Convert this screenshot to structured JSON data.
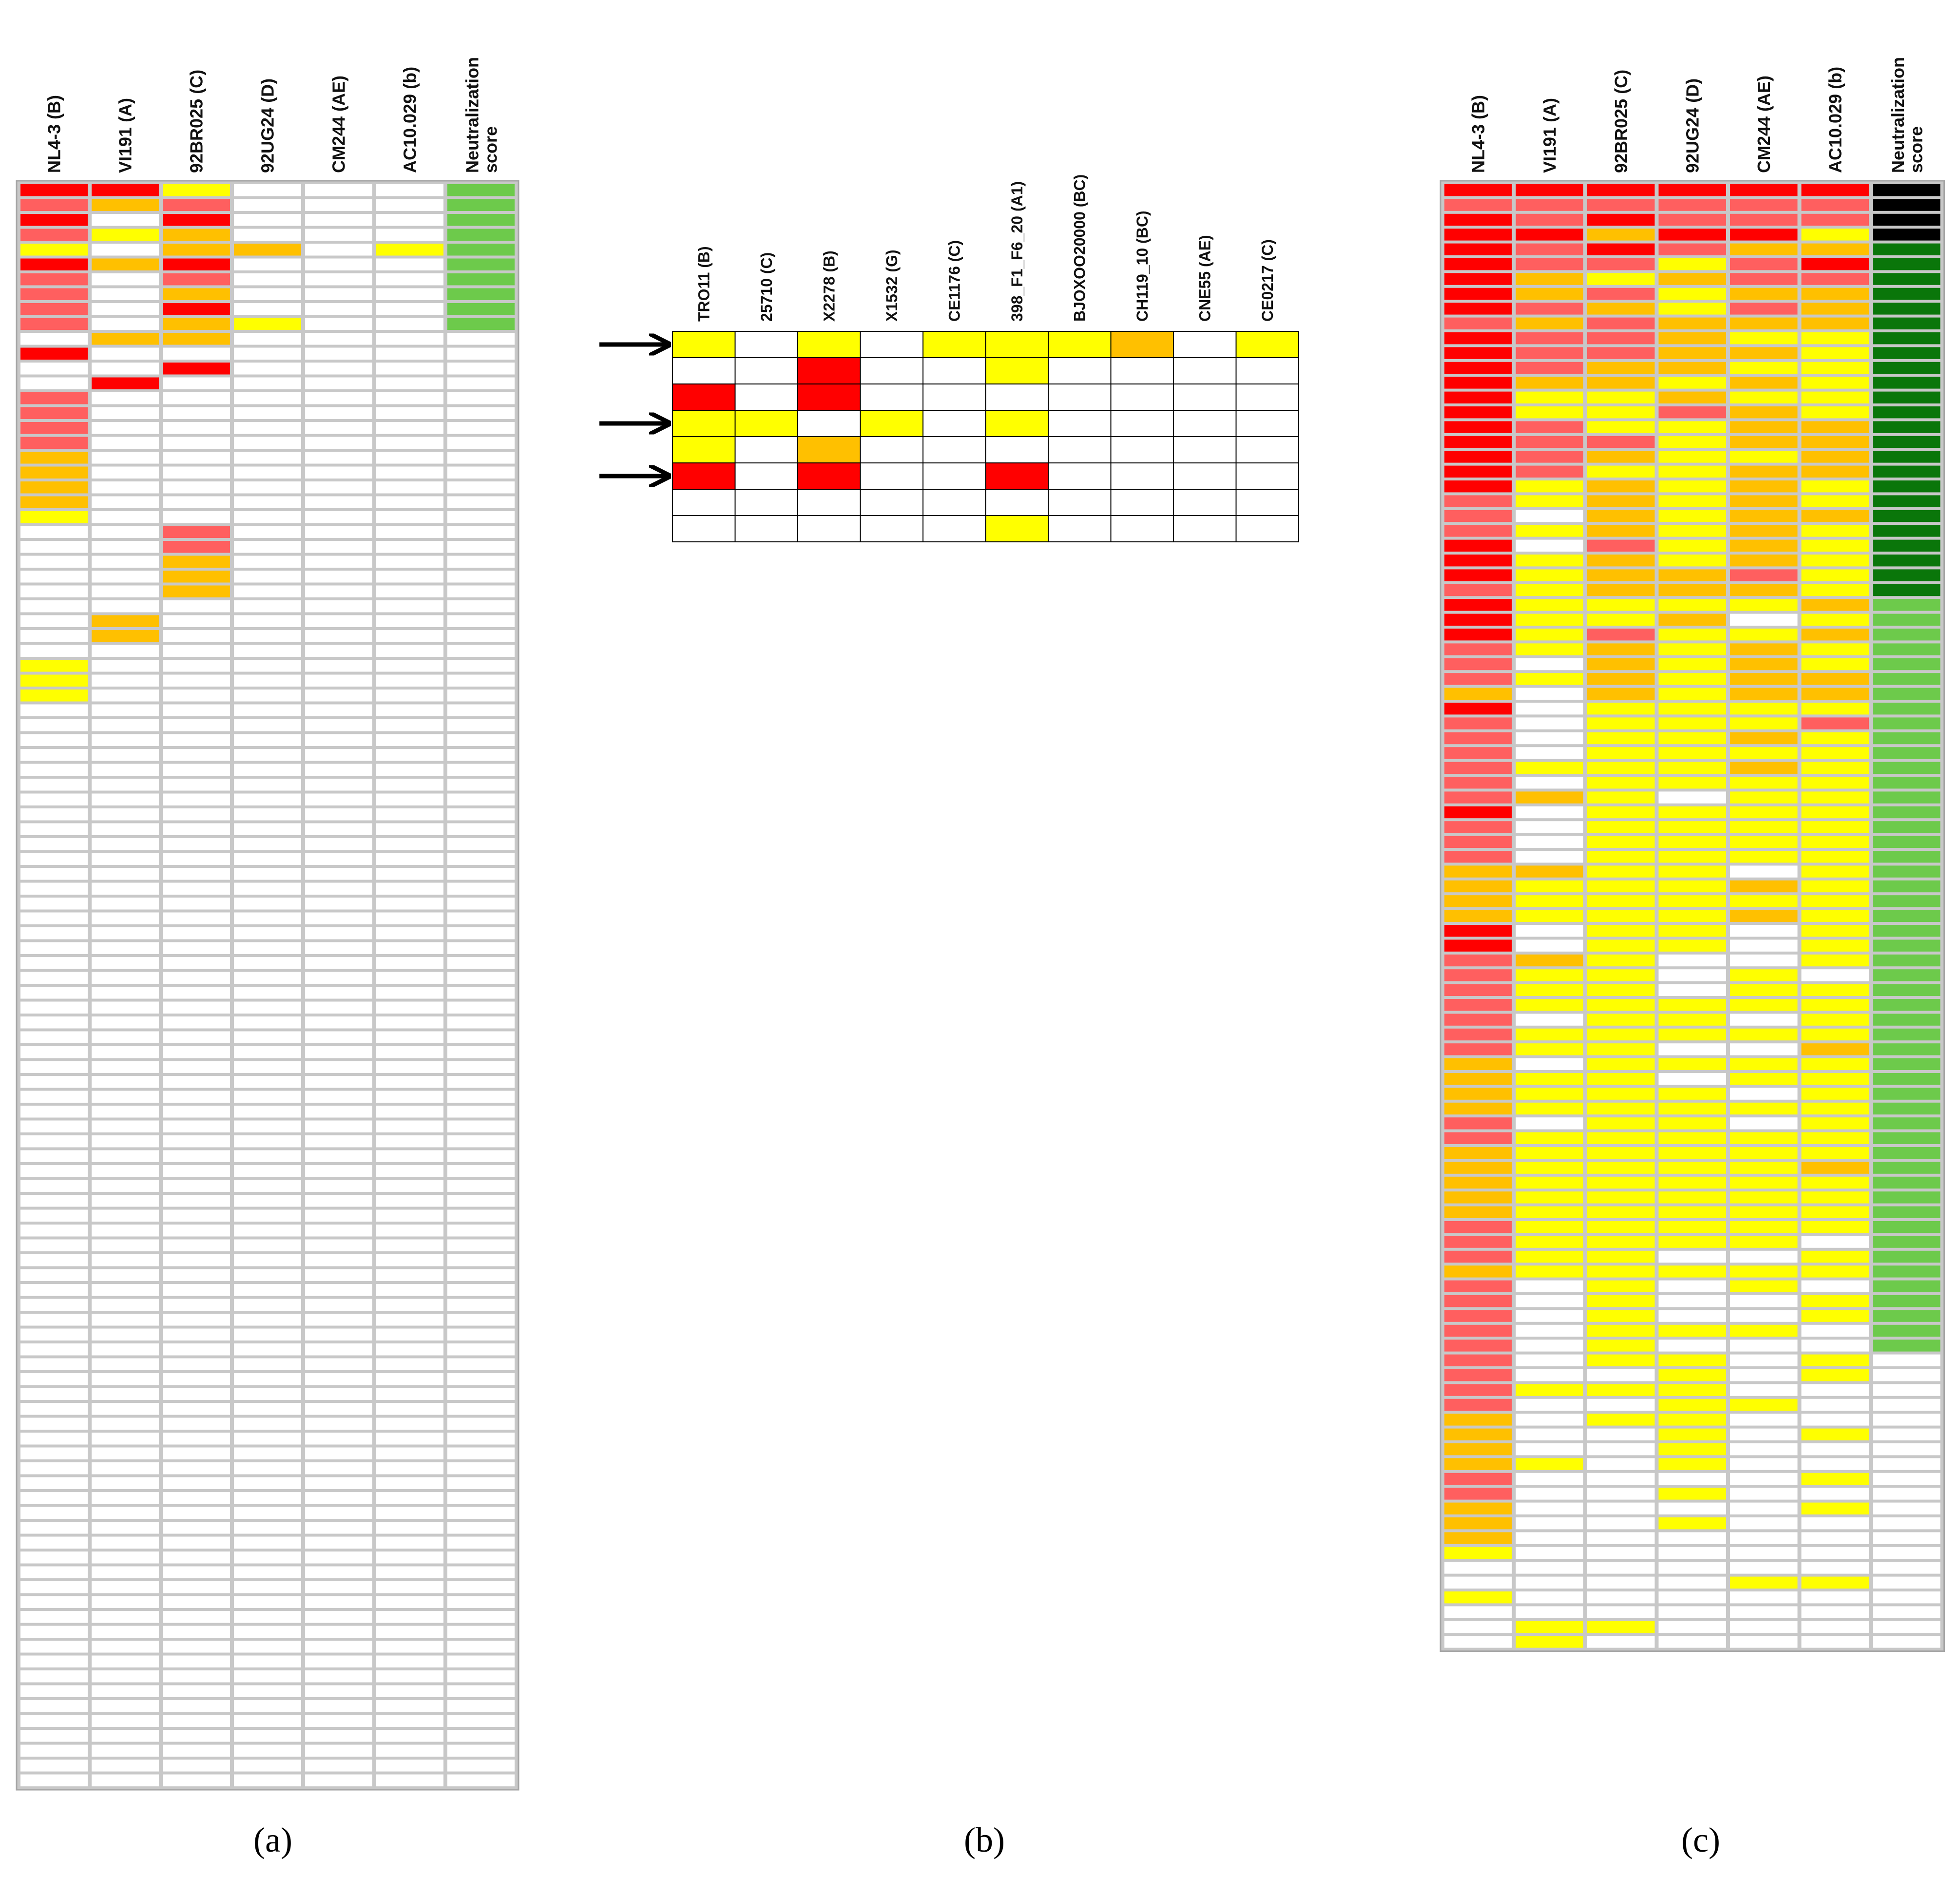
{
  "colors": {
    "red": "#ff0000",
    "salmon": "#ff5f5f",
    "orange": "#ffc000",
    "yellow": "#ffff00",
    "white": "#ffffff",
    "green_light": "#6dca4b",
    "green_dark": "#0a760a",
    "black": "#000000",
    "grid": "#a6a6a6",
    "grid_b": "#000000"
  },
  "color_codes": {
    "R": "red",
    "S": "salmon",
    "O": "orange",
    "Y": "yellow",
    "W": "white",
    "G": "green_light",
    "D": "green_dark",
    "K": "black"
  },
  "chart_data": [
    {
      "type": "heatmap",
      "panel": "a",
      "caption": "(a)",
      "columns": [
        "NL4-3 (B)",
        "VI191 (A)",
        "92BR025 (C)",
        "92UG24 (D)",
        "CM244 (AE)",
        "AC10.029 (b)",
        "Neutralization score"
      ],
      "rows": [
        "RRYWWWG",
        "SOSWWWG",
        "RWRWWWG",
        "SYOWWWG",
        "YWOOWYG",
        "RORWWWG",
        "SWSWWWG",
        "SWOWWWG",
        "SWRWWWG",
        "SWOYWWG",
        "WOOWWWW",
        "RWWWWWW",
        "WWRWWWW",
        "WRWWWWW",
        "SWWWWWW",
        "SWWWWWW",
        "SWWWWWW",
        "SWWWWWW",
        "OWWWWWW",
        "OWWWWWW",
        "OWWWWWW",
        "OWWWWWW",
        "YWWWWWW",
        "WWSWWWW",
        "WWSWWWW",
        "WWOWWWW",
        "WWOWWWW",
        "WWOWWWW",
        "WWWWWWW",
        "WOWWWWW",
        "WOWWWWW",
        "WWWWWWW",
        "YWWWWWW",
        "YWWWWWW",
        "YWWWWWW",
        "WWWWWWW",
        "WWWWWWW",
        "WWWWWWW",
        "WWWWWWW",
        "WWWWWWW",
        "WWWWWWW",
        "WWWWWWW",
        "WWWWWWW",
        "WWWWWWW",
        "WWWWWWW",
        "WWWWWWW",
        "WWWWWWW",
        "WWWWWWW",
        "WWWWWWW",
        "WWWWWWW",
        "WWWWWWW",
        "WWWWWWW",
        "WWWWWWW",
        "WWWWWWW",
        "WWWWWWW",
        "WWWWWWW",
        "WWWWWWW",
        "WWWWWWW",
        "WWWWWWW",
        "WWWWWWW",
        "WWWWWWW",
        "WWWWWWW",
        "WWWWWWW",
        "WWWWWWW",
        "WWWWWWW",
        "WWWWWWW",
        "WWWWWWW",
        "WWWWWWW",
        "WWWWWWW",
        "WWWWWWW",
        "WWWWWWW",
        "WWWWWWW",
        "WWWWWWW",
        "WWWWWWW",
        "WWWWWWW",
        "WWWWWWW",
        "WWWWWWW",
        "WWWWWWW",
        "WWWWWWW",
        "WWWWWWW",
        "WWWWWWW",
        "WWWWWWW",
        "WWWWWWW",
        "WWWWWWW",
        "WWWWWWW",
        "WWWWWWW",
        "WWWWWWW",
        "WWWWWWW",
        "WWWWWWW",
        "WWWWWWW",
        "WWWWWWW",
        "WWWWWWW",
        "WWWWWWW",
        "WWWWWWW",
        "WWWWWWW",
        "WWWWWWW",
        "WWWWWWW",
        "WWWWWWW",
        "WWWWWWW",
        "WWWWWWW",
        "WWWWWWW",
        "WWWWWWW",
        "WWWWWWW",
        "WWWWWWW",
        "WWWWWWW",
        "WWWWWWW",
        "WWWWWWW",
        "WWWWWWW"
      ]
    },
    {
      "type": "heatmap",
      "panel": "b",
      "caption": "(b)",
      "columns": [
        "TRO11 (B)",
        "25710 (C)",
        "X2278 (B)",
        "X1532 (G)",
        "CE1176 (C)",
        "398_F1_F6_20 (A1)",
        "BJOXOO20000 (BC)",
        "CH119_10 (BC)",
        "CNE55 (AE)",
        "CE0217 (C)"
      ],
      "rows": [
        "YWYWYYYOWY",
        "WWRWWYWWWW",
        "RWRWWWWWWW",
        "YYWYWYWWWW",
        "YWOWWWWWWW",
        "RWRWWRWWWW",
        "WWWWWWWWWW",
        "WWWWWYWWWW"
      ],
      "arrow_rows": [
        1,
        4,
        6
      ]
    },
    {
      "type": "heatmap",
      "panel": "c",
      "caption": "(c)",
      "columns": [
        "NL4-3 (B)",
        "VI191 (A)",
        "92BR025 (C)",
        "92UG24 (D)",
        "CM244 (AE)",
        "AC10.029 (b)",
        "Neutralization score"
      ],
      "rows": [
        "RRRRRRK",
        "SSSSSSK",
        "RSRSSSK",
        "RRORRYK",
        "RSRSOOD",
        "RSSYSRD",
        "ROYOSSD",
        "ROSYOOD",
        "RSOYSOD",
        "SOSOOOD",
        "RSSOYYD",
        "RSSOOYD",
        "RSOOYYD",
        "ROOYOYD",
        "RYYOYYD",
        "RYYSOYD",
        "RSYYOOD",
        "RSSYOOD",
        "RSOYYOD",
        "RSYYOOD",
        "RYOYOYD",
        "SYOYOYD",
        "SWOYOOD",
        "SYOYOYD",
        "RWSYOYD",
        "RYOYOYD",
        "RYOOSYD",
        "SYOOOYD",
        "RYYYYOG",
        "RYYOWYG",
        "RYSYYOG",
        "SYOYOYG",
        "SWOYOYG",
        "SYOYOOG",
        "OWOYOOG",
        "RWYYYYG",
        "SWYYYSG",
        "SWYYOYG",
        "SWYYYYG",
        "SYYYOYG",
        "SWYYYYG",
        "SOYWYYG",
        "RWYYYYG",
        "SWYYYYG",
        "SWYYYYG",
        "SWYYYYG",
        "OOYYWYG",
        "OYYYOYG",
        "OYYYYYG",
        "OYYYOYG",
        "RWYYWYG",
        "RWYYWYG",
        "SOYWWYG",
        "SYYWYWG",
        "SYYWYYG",
        "SYYYYYG",
        "SWYYWYG",
        "SYYYYYG",
        "SYYWWOG",
        "OWYYYYG",
        "OYYWYYG",
        "OYYYWYG",
        "OYYYYYG",
        "SWYYWYG",
        "SYYYYYG",
        "OYYYYYG",
        "OYYYYOG",
        "OYYYYYG",
        "OYYYYYG",
        "OYYYYYG",
        "SYYYYYG",
        "SYYYYWG",
        "SYYWWYG",
        "OYYYYYG",
        "SWYWYWG",
        "SWYWWYG",
        "SWYWWYG",
        "SWYYYWG",
        "SWYWWWG",
        "SWYYWYW",
        "SWWYWYW",
        "SYYYWWW",
        "SWWYYWW",
        "OWYYWWW",
        "OWWYWYW",
        "OWWYWWW",
        "OYWYWWW",
        "SWWWWYW",
        "SWWYWWW",
        "OWWWWYW",
        "OWWYWWW",
        "OWWWWWW",
        "YWWWWWW",
        "WWWWWWW",
        "WWWWYYW",
        "YWWWWWW",
        "WWWWWWW",
        "WYYWWWW",
        "WYWWWWW"
      ]
    }
  ]
}
